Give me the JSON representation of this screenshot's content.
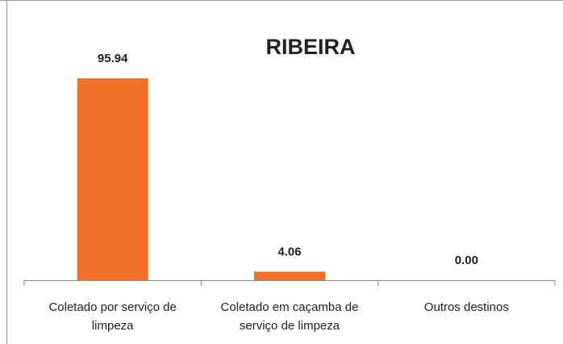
{
  "chart_data": {
    "type": "bar",
    "title": "RIBEIRA",
    "categories": [
      "Coletado por serviço de limpeza",
      "Coletado em caçamba de serviço de limpeza",
      "Outros destinos"
    ],
    "values": [
      95.94,
      4.06,
      0
    ],
    "value_labels": [
      "95.94",
      "4.06",
      "0.00"
    ],
    "color": "#f07028"
  }
}
